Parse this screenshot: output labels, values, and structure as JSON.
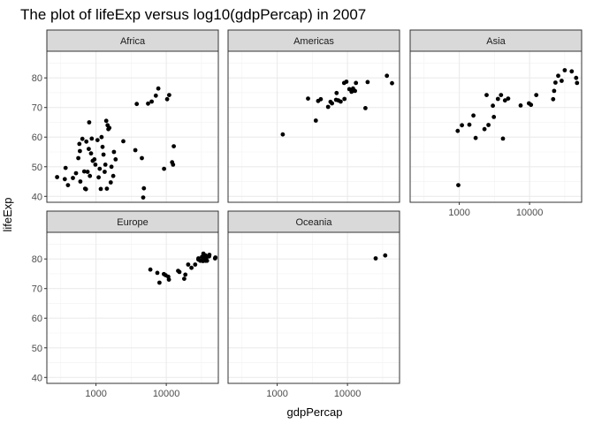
{
  "chart_data": {
    "type": "scatter",
    "title": "The plot of lifeExp versus log10(gdpPercap) in 2007",
    "xlabel": "gdpPercap",
    "ylabel": "lifeExp",
    "x_scale": "log10",
    "xlim": [
      200,
      55000
    ],
    "ylim": [
      38,
      89
    ],
    "x_ticks": [
      1000,
      10000
    ],
    "x_tick_labels": [
      "1000",
      "10000"
    ],
    "y_ticks": [
      40,
      50,
      60,
      70,
      80
    ],
    "y_tick_labels": [
      "40",
      "50",
      "60",
      "70",
      "80"
    ],
    "grid": true,
    "point_color": "#000000",
    "strip_fill": "#d9d9d9",
    "panels": [
      {
        "name": "Africa",
        "points": [
          [
            280,
            46.5
          ],
          [
            360,
            45.8
          ],
          [
            370,
            49.6
          ],
          [
            400,
            43.8
          ],
          [
            470,
            46.2
          ],
          [
            520,
            47.8
          ],
          [
            560,
            52.9
          ],
          [
            580,
            57.7
          ],
          [
            590,
            55.3
          ],
          [
            600,
            45.0
          ],
          [
            640,
            59.4
          ],
          [
            680,
            48.4
          ],
          [
            700,
            42.6
          ],
          [
            720,
            42.4
          ],
          [
            730,
            58.5
          ],
          [
            760,
            48.3
          ],
          [
            790,
            56.0
          ],
          [
            800,
            65.0
          ],
          [
            820,
            46.9
          ],
          [
            850,
            54.5
          ],
          [
            870,
            59.5
          ],
          [
            900,
            52.0
          ],
          [
            950,
            52.5
          ],
          [
            980,
            50.7
          ],
          [
            1050,
            59.0
          ],
          [
            1090,
            46.4
          ],
          [
            1130,
            49.3
          ],
          [
            1170,
            42.5
          ],
          [
            1200,
            60.0
          ],
          [
            1240,
            56.7
          ],
          [
            1280,
            54.1
          ],
          [
            1330,
            48.3
          ],
          [
            1360,
            50.7
          ],
          [
            1400,
            65.5
          ],
          [
            1430,
            42.6
          ],
          [
            1460,
            64.0
          ],
          [
            1500,
            62.7
          ],
          [
            1550,
            63.1
          ],
          [
            1620,
            44.7
          ],
          [
            1660,
            50.0
          ],
          [
            1760,
            46.9
          ],
          [
            1800,
            55.0
          ],
          [
            1900,
            52.5
          ],
          [
            2450,
            58.6
          ],
          [
            3630,
            55.6
          ],
          [
            3800,
            71.2
          ],
          [
            4500,
            52.9
          ],
          [
            4700,
            39.6
          ],
          [
            4800,
            42.7
          ],
          [
            5500,
            71.3
          ],
          [
            6200,
            72.0
          ],
          [
            7100,
            74.0
          ],
          [
            7700,
            76.4
          ],
          [
            9300,
            49.3
          ],
          [
            10300,
            72.8
          ],
          [
            11000,
            74.2
          ],
          [
            12100,
            51.5
          ],
          [
            12500,
            50.7
          ],
          [
            12800,
            56.9
          ]
        ]
      },
      {
        "name": "Americas",
        "points": [
          [
            1200,
            60.9
          ],
          [
            2750,
            73.0
          ],
          [
            3550,
            65.6
          ],
          [
            3820,
            72.2
          ],
          [
            4170,
            72.8
          ],
          [
            5300,
            70.2
          ],
          [
            5730,
            71.9
          ],
          [
            6030,
            71.4
          ],
          [
            6870,
            72.6
          ],
          [
            7010,
            74.9
          ],
          [
            7410,
            72.4
          ],
          [
            8000,
            72.0
          ],
          [
            8950,
            78.3
          ],
          [
            9070,
            72.9
          ],
          [
            9650,
            78.7
          ],
          [
            10610,
            76.2
          ],
          [
            11420,
            75.3
          ],
          [
            11980,
            76.4
          ],
          [
            12780,
            75.6
          ],
          [
            13200,
            78.3
          ],
          [
            18000,
            69.8
          ],
          [
            19330,
            78.6
          ],
          [
            36320,
            80.7
          ],
          [
            42950,
            78.2
          ]
        ]
      },
      {
        "name": "Asia",
        "points": [
          [
            970,
            43.8
          ],
          [
            950,
            62.1
          ],
          [
            1090,
            64.0
          ],
          [
            1390,
            64.2
          ],
          [
            1590,
            67.3
          ],
          [
            1710,
            59.7
          ],
          [
            2280,
            62.7
          ],
          [
            2450,
            74.2
          ],
          [
            2600,
            64.1
          ],
          [
            3010,
            70.6
          ],
          [
            3100,
            66.8
          ],
          [
            3540,
            72.9
          ],
          [
            3920,
            74.2
          ],
          [
            4180,
            59.5
          ],
          [
            4470,
            72.4
          ],
          [
            4960,
            73.0
          ],
          [
            7460,
            70.7
          ],
          [
            9790,
            71.4
          ],
          [
            10460,
            70.9
          ],
          [
            12450,
            74.2
          ],
          [
            21650,
            72.8
          ],
          [
            22320,
            75.6
          ],
          [
            23350,
            78.4
          ],
          [
            25520,
            80.7
          ],
          [
            28600,
            79.0
          ],
          [
            31650,
            82.6
          ],
          [
            39720,
            82.2
          ],
          [
            46000,
            80.0
          ],
          [
            47300,
            78.3
          ]
        ]
      },
      {
        "name": "Europe",
        "points": [
          [
            5940,
            76.4
          ],
          [
            7450,
            75.3
          ],
          [
            8000,
            72.0
          ],
          [
            9250,
            74.9
          ],
          [
            9790,
            74.5
          ],
          [
            10680,
            74.0
          ],
          [
            10900,
            73.0
          ],
          [
            14750,
            76.0
          ],
          [
            15390,
            75.6
          ],
          [
            18010,
            73.3
          ],
          [
            18680,
            74.7
          ],
          [
            20510,
            78.1
          ],
          [
            22830,
            77.0
          ],
          [
            25770,
            78.1
          ],
          [
            28570,
            79.8
          ],
          [
            28690,
            80.2
          ],
          [
            30470,
            79.4
          ],
          [
            32170,
            80.7
          ],
          [
            33200,
            79.3
          ],
          [
            33690,
            81.8
          ],
          [
            33860,
            79.8
          ],
          [
            35280,
            80.5
          ],
          [
            36130,
            81.2
          ],
          [
            36130,
            79.4
          ],
          [
            37510,
            80.6
          ],
          [
            38000,
            79.4
          ],
          [
            40680,
            80.9
          ],
          [
            41000,
            81.4
          ],
          [
            49360,
            80.2
          ],
          [
            50000,
            80.5
          ]
        ]
      },
      {
        "name": "Oceania",
        "points": [
          [
            25190,
            80.2
          ],
          [
            34440,
            81.2
          ]
        ]
      }
    ]
  }
}
